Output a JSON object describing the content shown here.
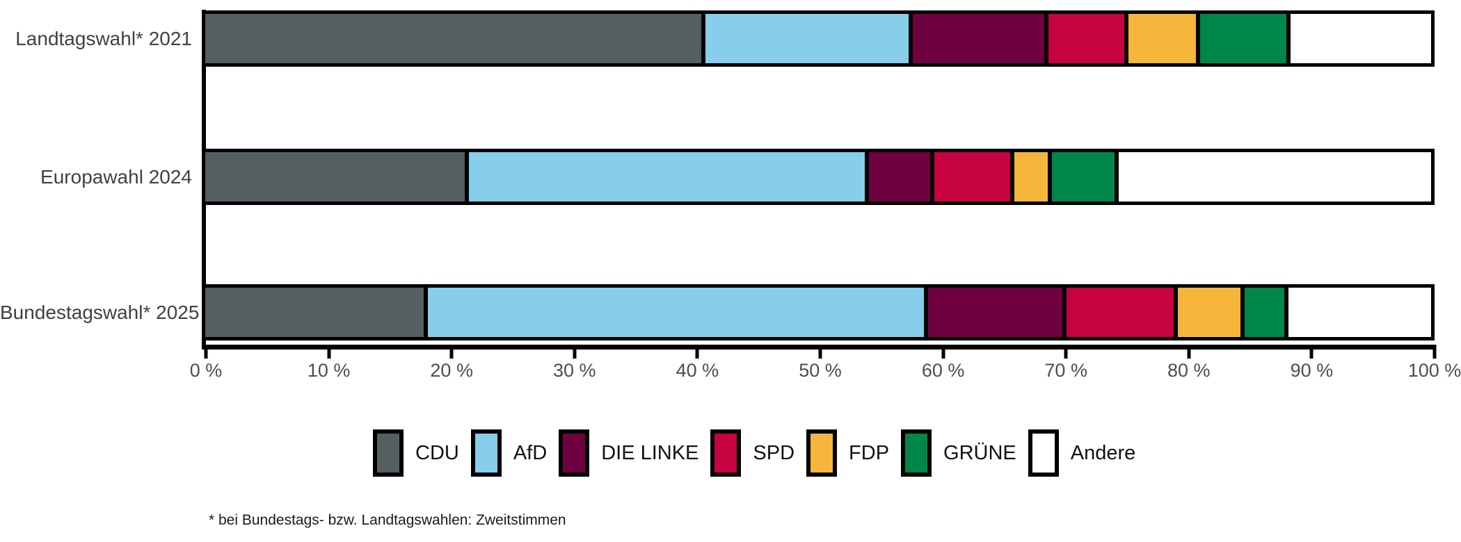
{
  "chart_data": {
    "type": "bar",
    "orientation": "horizontal",
    "stacked": true,
    "title": "",
    "xlabel": "",
    "ylabel": "",
    "xlim": [
      0,
      100
    ],
    "grid": false,
    "legend_position": "bottom",
    "categories": [
      "Landtagswahl* 2021",
      "Europawahl 2024",
      "Bundestagswahl* 2025"
    ],
    "series": [
      {
        "name": "CDU",
        "color": "#555F62",
        "values": [
          41.3,
          21.6,
          18.2
        ]
      },
      {
        "name": "AfD",
        "color": "#86CEEB",
        "values": [
          16.9,
          33.0,
          41.3
        ]
      },
      {
        "name": "DIE LINKE",
        "color": "#700140",
        "values": [
          11.0,
          5.1,
          11.2
        ]
      },
      {
        "name": "SPD",
        "color": "#C60240",
        "values": [
          6.3,
          6.3,
          8.9
        ]
      },
      {
        "name": "FDP",
        "color": "#F6B63C",
        "values": [
          5.6,
          2.8,
          5.2
        ]
      },
      {
        "name": "GRÜNE",
        "color": "#008649",
        "values": [
          7.2,
          5.2,
          3.3
        ]
      },
      {
        "name": "Andere",
        "color": "#FFFFFF",
        "values": [
          11.7,
          26.0,
          11.9
        ]
      }
    ],
    "x_ticks": [
      0,
      10,
      20,
      30,
      40,
      50,
      60,
      70,
      80,
      90,
      100
    ],
    "x_tick_labels": [
      "0 %",
      "10 %",
      "20 %",
      "30 %",
      "40 %",
      "50 %",
      "60 %",
      "70 %",
      "80 %",
      "90 %",
      "100 %"
    ],
    "footnote": "* bei Bundestags- bzw. Landtagswahlen: Zweitstimmen",
    "colors": {
      "axis": "#000000",
      "tick_text": "#4d4d4d",
      "category_text": "#414141",
      "legend_text": "#111111"
    }
  }
}
